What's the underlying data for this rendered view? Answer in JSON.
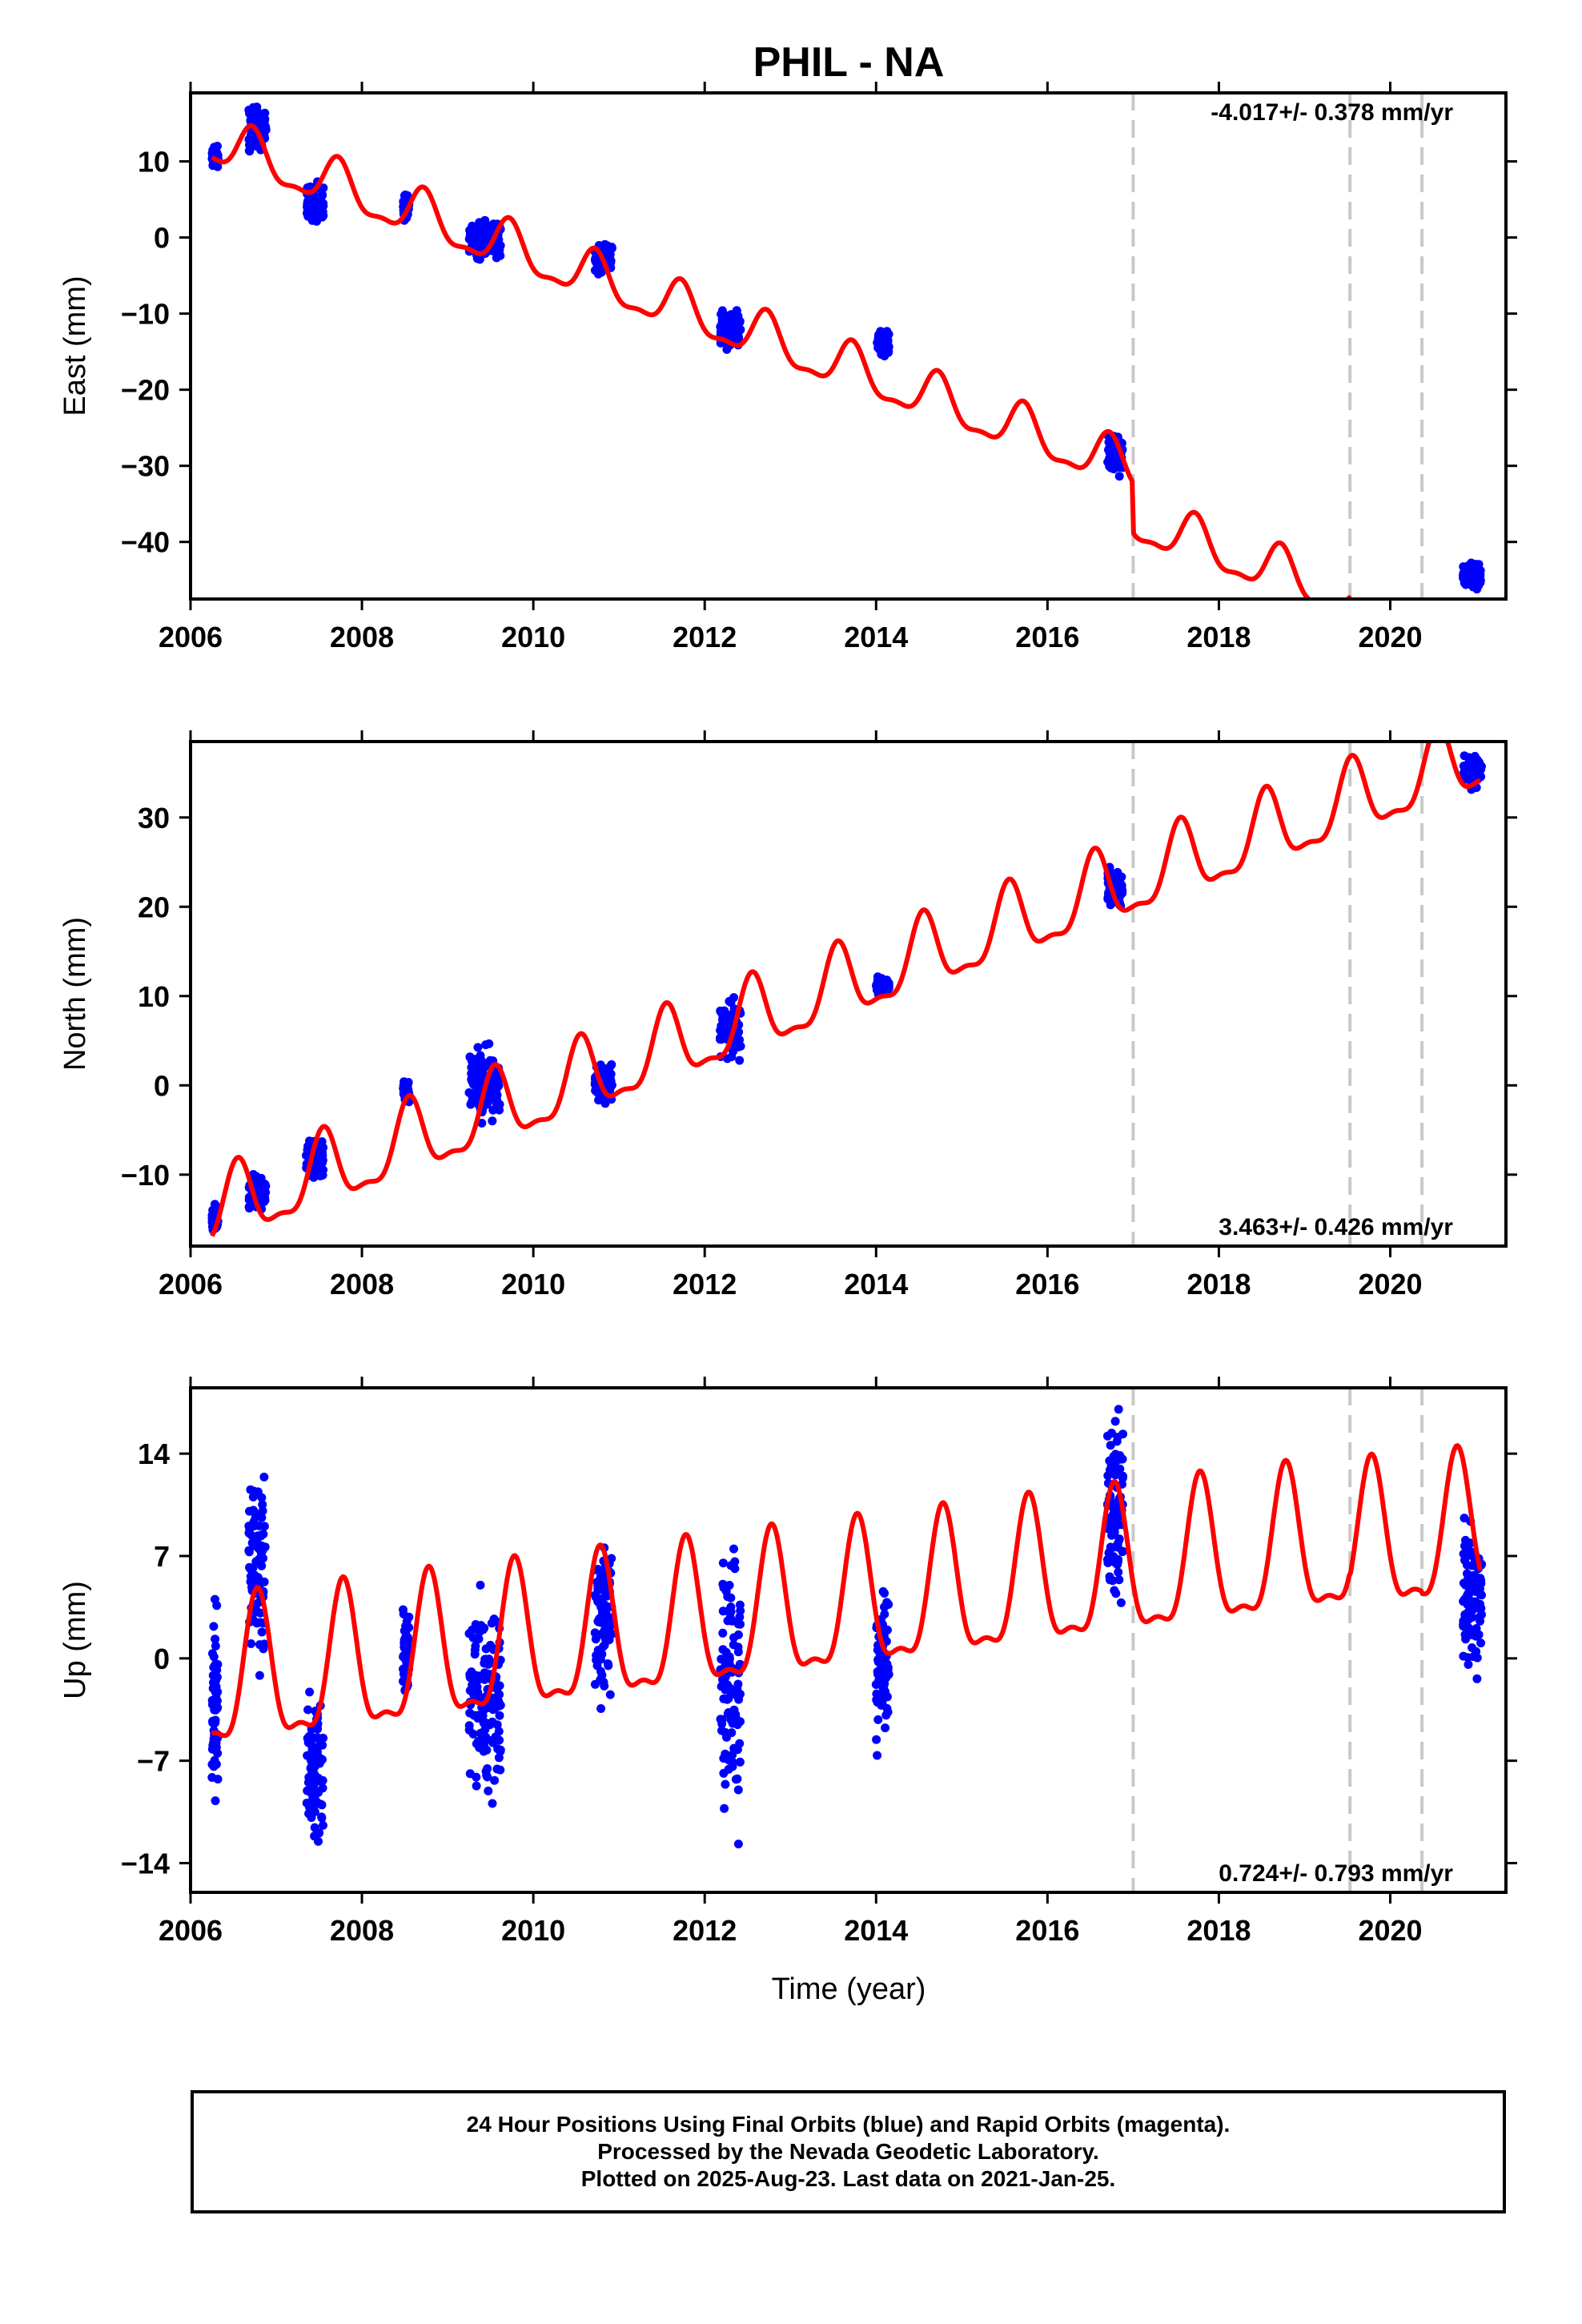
{
  "title": "PHIL - NA",
  "xlabel": "Time (year)",
  "footer": {
    "line1": "24 Hour Positions Using Final Orbits (blue) and Rapid Orbits (magenta).",
    "line2": "Processed by the Nevada Geodetic Laboratory.",
    "line3": "Plotted on 2025-Aug-23. Last data on 2021-Jan-25."
  },
  "colors": {
    "final_orbits": "#0000ff",
    "model_fit": "#ff0000",
    "steps": "#c8c8c8",
    "axes": "#000000"
  },
  "chart_data": [
    {
      "type": "scatter",
      "component": "east",
      "ylabel": "East (mm)",
      "rate_label": "-4.017+/- 0.378 mm/yr",
      "rate_label_position": "top-right",
      "xlim": [
        2006.0,
        2021.35
      ],
      "ylim": [
        -47.5,
        19.0
      ],
      "xticks": [
        2006,
        2008,
        2010,
        2012,
        2014,
        2016,
        2018,
        2020
      ],
      "yticks": [
        10,
        0,
        -10,
        -20,
        -30,
        -40
      ],
      "vlines": [
        2017.0,
        2019.53,
        2020.37
      ],
      "series": [
        {
          "style": "points",
          "clusters": [
            {
              "t0": 2006.25,
              "t1": 2006.32,
              "y0": 8.5,
              "y1": 12.5
            },
            {
              "t0": 2006.68,
              "t1": 2006.88,
              "y0": 10.0,
              "y1": 18.5
            },
            {
              "t0": 2007.35,
              "t1": 2007.55,
              "y0": 1.0,
              "y1": 8.0
            },
            {
              "t0": 2008.48,
              "t1": 2008.55,
              "y0": 2.0,
              "y1": 6.5
            },
            {
              "t0": 2009.25,
              "t1": 2009.62,
              "y0": -3.5,
              "y1": 3.5
            },
            {
              "t0": 2010.72,
              "t1": 2010.92,
              "y0": -5.5,
              "y1": 0.0
            },
            {
              "t0": 2012.18,
              "t1": 2012.42,
              "y0": -15.5,
              "y1": -8.5
            },
            {
              "t0": 2014.0,
              "t1": 2014.15,
              "y0": -16.0,
              "y1": -12.0
            },
            {
              "t0": 2016.7,
              "t1": 2016.88,
              "y0": -32.0,
              "y1": -25.0
            },
            {
              "t0": 2020.85,
              "t1": 2021.07,
              "y0": -46.5,
              "y1": -42.5
            }
          ]
        },
        {
          "style": "line",
          "start": 2006.25,
          "end": 2021.05,
          "intercept": 12.5,
          "rate": -4.017,
          "segments": [
            [
              -44.0,
              -47.0
            ]
          ],
          "annual_amp": 3.0,
          "annual_peak": 2006.72
        }
      ]
    },
    {
      "type": "scatter",
      "component": "north",
      "ylabel": "North (mm)",
      "rate_label": "3.463+/- 0.426 mm/yr",
      "rate_label_position": "bottom-right",
      "xlim": [
        2006.0,
        2021.35
      ],
      "ylim": [
        -18.0,
        38.5
      ],
      "xticks": [
        2006,
        2008,
        2010,
        2012,
        2014,
        2016,
        2018,
        2020
      ],
      "yticks": [
        30,
        20,
        10,
        0,
        -10
      ],
      "vlines": [
        2017.0,
        2019.53,
        2020.37
      ],
      "series": [
        {
          "style": "points",
          "clusters": [
            {
              "t0": 2006.25,
              "t1": 2006.32,
              "y0": -17.0,
              "y1": -13.0
            },
            {
              "t0": 2006.68,
              "t1": 2006.88,
              "y0": -15.0,
              "y1": -9.5
            },
            {
              "t0": 2007.35,
              "t1": 2007.55,
              "y0": -11.0,
              "y1": -5.5
            },
            {
              "t0": 2008.48,
              "t1": 2008.55,
              "y0": -2.0,
              "y1": 0.5
            },
            {
              "t0": 2009.25,
              "t1": 2009.62,
              "y0": -4.5,
              "y1": 5.5
            },
            {
              "t0": 2010.72,
              "t1": 2010.92,
              "y0": -2.5,
              "y1": 3.0
            },
            {
              "t0": 2012.18,
              "t1": 2012.42,
              "y0": 2.5,
              "y1": 10.5
            },
            {
              "t0": 2014.0,
              "t1": 2014.15,
              "y0": 10.0,
              "y1": 12.5
            },
            {
              "t0": 2016.7,
              "t1": 2016.88,
              "y0": 19.5,
              "y1": 25.0
            },
            {
              "t0": 2020.85,
              "t1": 2021.07,
              "y0": 33.0,
              "y1": 37.5
            }
          ]
        },
        {
          "style": "line",
          "start": 2006.25,
          "end": 2021.05,
          "intercept": -14.5,
          "rate": 3.463,
          "annual_amp": 4.0,
          "annual_peak": 2006.55
        }
      ]
    },
    {
      "type": "scatter",
      "component": "up",
      "ylabel": "Up (mm)",
      "rate_label": "0.724+/- 0.793 mm/yr",
      "rate_label_position": "bottom-right",
      "xlim": [
        2006.0,
        2021.35
      ],
      "ylim": [
        -16.0,
        18.5
      ],
      "xticks": [
        2006,
        2008,
        2010,
        2012,
        2014,
        2016,
        2018,
        2020
      ],
      "yticks": [
        14,
        7,
        0,
        -7,
        -14
      ],
      "vlines": [
        2017.0,
        2019.53,
        2020.37
      ],
      "series": [
        {
          "style": "points",
          "clusters": [
            {
              "t0": 2006.25,
              "t1": 2006.32,
              "y0": -11.0,
              "y1": 5.0
            },
            {
              "t0": 2006.68,
              "t1": 2006.88,
              "y0": -3.0,
              "y1": 15.5
            },
            {
              "t0": 2007.35,
              "t1": 2007.55,
              "y0": -15.5,
              "y1": -0.5
            },
            {
              "t0": 2008.48,
              "t1": 2008.55,
              "y0": -4.5,
              "y1": 5.0
            },
            {
              "t0": 2009.25,
              "t1": 2009.62,
              "y0": -11.5,
              "y1": 6.5
            },
            {
              "t0": 2010.72,
              "t1": 2010.92,
              "y0": -4.5,
              "y1": 10.5
            },
            {
              "t0": 2012.18,
              "t1": 2012.42,
              "y0": -14.0,
              "y1": 10.5
            },
            {
              "t0": 2014.0,
              "t1": 2014.15,
              "y0": -7.0,
              "y1": 6.0
            },
            {
              "t0": 2016.7,
              "t1": 2016.88,
              "y0": 2.0,
              "y1": 18.0
            },
            {
              "t0": 2020.85,
              "t1": 2021.07,
              "y0": -4.0,
              "y1": 12.0
            }
          ]
        },
        {
          "style": "line",
          "start": 2006.25,
          "end": 2021.05,
          "intercept": -2.0,
          "rate": 0.724,
          "segments": [
            [
              0.0,
              -2.0,
              -1.0,
              -3.0
            ]
          ],
          "annual_amp": 4.8,
          "annual_peak": 2006.78
        }
      ]
    }
  ]
}
